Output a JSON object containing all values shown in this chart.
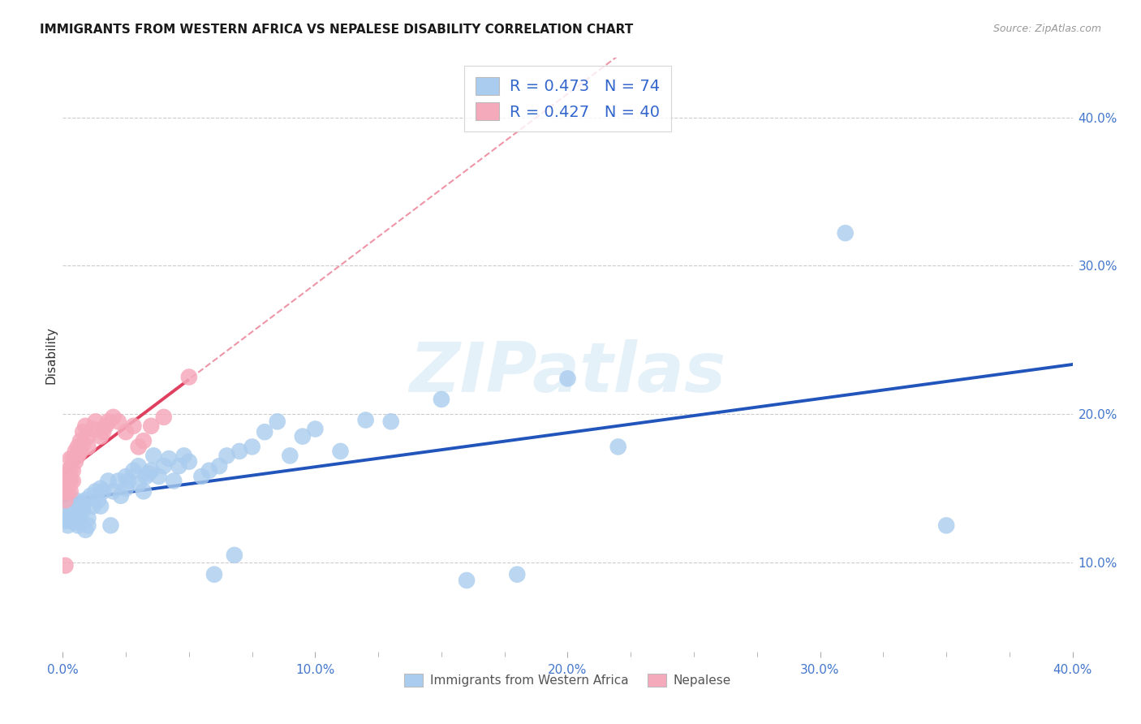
{
  "title": "IMMIGRANTS FROM WESTERN AFRICA VS NEPALESE DISABILITY CORRELATION CHART",
  "source": "Source: ZipAtlas.com",
  "ylabel": "Disability",
  "xlim": [
    0.0,
    0.4
  ],
  "ylim": [
    0.04,
    0.44
  ],
  "xtick_labels": [
    "0.0%",
    "",
    "",
    "",
    "10.0%",
    "",
    "",
    "",
    "20.0%",
    "",
    "",
    "",
    "30.0%",
    "",
    "",
    "",
    "40.0%"
  ],
  "xtick_values": [
    0.0,
    0.025,
    0.05,
    0.075,
    0.1,
    0.125,
    0.15,
    0.175,
    0.2,
    0.225,
    0.25,
    0.275,
    0.3,
    0.325,
    0.35,
    0.375,
    0.4
  ],
  "xtick_major_labels": [
    "0.0%",
    "10.0%",
    "20.0%",
    "30.0%",
    "40.0%"
  ],
  "xtick_major_values": [
    0.0,
    0.1,
    0.2,
    0.3,
    0.4
  ],
  "ytick_labels": [
    "10.0%",
    "20.0%",
    "30.0%",
    "40.0%"
  ],
  "ytick_values": [
    0.1,
    0.2,
    0.3,
    0.4
  ],
  "blue_R": 0.473,
  "blue_N": 74,
  "pink_R": 0.427,
  "pink_N": 40,
  "blue_color": "#aaccee",
  "blue_line_color": "#2255bb",
  "pink_color": "#f5aabb",
  "pink_line_color": "#e04060",
  "pink_dash_color": "#f0a0b8",
  "watermark": "ZIPatlas",
  "legend_label_blue": "Immigrants from Western Africa",
  "legend_label_pink": "Nepalese",
  "blue_x": [
    0.001,
    0.001,
    0.002,
    0.002,
    0.003,
    0.003,
    0.004,
    0.004,
    0.005,
    0.005,
    0.005,
    0.006,
    0.006,
    0.007,
    0.007,
    0.008,
    0.008,
    0.009,
    0.009,
    0.01,
    0.01,
    0.011,
    0.012,
    0.013,
    0.014,
    0.015,
    0.015,
    0.016,
    0.018,
    0.019,
    0.02,
    0.022,
    0.023,
    0.025,
    0.025,
    0.026,
    0.028,
    0.03,
    0.03,
    0.032,
    0.033,
    0.034,
    0.035,
    0.036,
    0.038,
    0.04,
    0.042,
    0.044,
    0.046,
    0.048,
    0.05,
    0.055,
    0.058,
    0.06,
    0.062,
    0.065,
    0.068,
    0.07,
    0.075,
    0.08,
    0.085,
    0.09,
    0.095,
    0.1,
    0.11,
    0.12,
    0.13,
    0.15,
    0.16,
    0.18,
    0.2,
    0.22,
    0.31,
    0.35
  ],
  "blue_y": [
    0.135,
    0.128,
    0.14,
    0.125,
    0.132,
    0.128,
    0.138,
    0.13,
    0.127,
    0.142,
    0.136,
    0.133,
    0.125,
    0.14,
    0.128,
    0.135,
    0.138,
    0.122,
    0.142,
    0.13,
    0.125,
    0.145,
    0.138,
    0.148,
    0.142,
    0.15,
    0.138,
    0.148,
    0.155,
    0.125,
    0.148,
    0.155,
    0.145,
    0.158,
    0.15,
    0.155,
    0.162,
    0.153,
    0.165,
    0.148,
    0.158,
    0.16,
    0.162,
    0.172,
    0.158,
    0.165,
    0.17,
    0.155,
    0.165,
    0.172,
    0.168,
    0.158,
    0.162,
    0.092,
    0.165,
    0.172,
    0.105,
    0.175,
    0.178,
    0.188,
    0.195,
    0.172,
    0.185,
    0.19,
    0.175,
    0.196,
    0.195,
    0.21,
    0.088,
    0.092,
    0.224,
    0.178,
    0.322,
    0.125
  ],
  "pink_x": [
    0.001,
    0.001,
    0.001,
    0.002,
    0.002,
    0.002,
    0.003,
    0.003,
    0.003,
    0.003,
    0.004,
    0.004,
    0.004,
    0.005,
    0.005,
    0.006,
    0.006,
    0.007,
    0.007,
    0.008,
    0.008,
    0.009,
    0.01,
    0.01,
    0.012,
    0.013,
    0.015,
    0.016,
    0.017,
    0.018,
    0.02,
    0.022,
    0.025,
    0.028,
    0.03,
    0.032,
    0.035,
    0.04,
    0.05,
    0.001
  ],
  "pink_y": [
    0.155,
    0.148,
    0.142,
    0.162,
    0.155,
    0.148,
    0.17,
    0.162,
    0.155,
    0.148,
    0.17,
    0.162,
    0.155,
    0.175,
    0.168,
    0.178,
    0.172,
    0.182,
    0.175,
    0.188,
    0.18,
    0.192,
    0.185,
    0.178,
    0.19,
    0.195,
    0.185,
    0.188,
    0.192,
    0.195,
    0.198,
    0.195,
    0.188,
    0.192,
    0.178,
    0.182,
    0.192,
    0.198,
    0.225,
    0.098
  ]
}
